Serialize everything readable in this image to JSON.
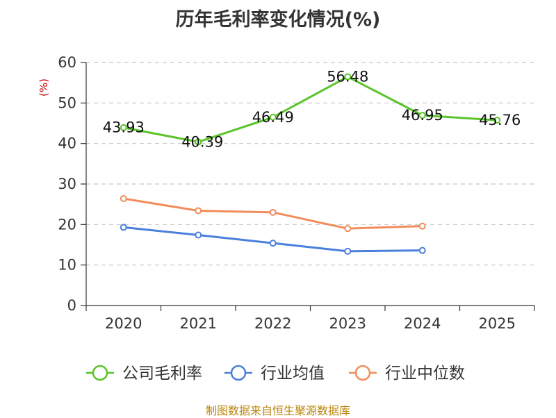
{
  "chart_data": {
    "type": "line",
    "title": "历年毛利率变化情况(%)",
    "ylabel": "(%)",
    "xlabel": "",
    "categories": [
      "2020",
      "2021",
      "2022",
      "2023",
      "2024",
      "2025"
    ],
    "ylim": [
      0,
      60
    ],
    "yticks": [
      0,
      10,
      20,
      30,
      40,
      50,
      60
    ],
    "grid": true,
    "legend_position": "bottom",
    "series": [
      {
        "name": "公司毛利率",
        "color": "#5ac42a",
        "values": [
          43.93,
          40.39,
          46.49,
          56.48,
          46.95,
          45.76
        ],
        "show_labels": true
      },
      {
        "name": "行业均值",
        "color": "#4a7fdc",
        "values": [
          19.3,
          17.4,
          15.4,
          13.4,
          13.6,
          null
        ],
        "show_labels": false
      },
      {
        "name": "行业中位数",
        "color": "#f28c5a",
        "values": [
          26.4,
          23.4,
          23.0,
          19.0,
          19.6,
          null
        ],
        "show_labels": false
      }
    ]
  },
  "source": "制图数据来自恒生聚源数据库"
}
